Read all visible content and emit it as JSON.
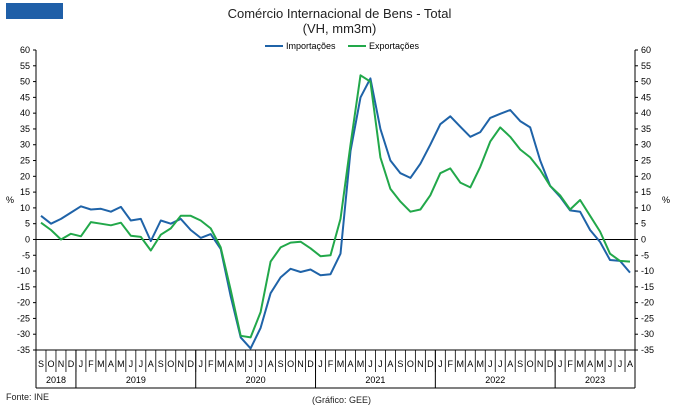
{
  "header": {
    "logo_colors": [
      "#1f5fa8",
      "#1f5fa8",
      "#1f5fa8"
    ]
  },
  "footer": {
    "source": "Fonte: INE",
    "credit": "(Gráfico: GEE)"
  },
  "chart_data": {
    "type": "line",
    "title": "Comércio Internacional de Bens - Total",
    "subtitle": "(VH, mm3m)",
    "ylabel": "%",
    "ylabel_right": "%",
    "ylim": [
      -35,
      60
    ],
    "yticks": [
      -35,
      -30,
      -25,
      -20,
      -15,
      -10,
      -5,
      0,
      5,
      10,
      15,
      20,
      25,
      30,
      35,
      40,
      45,
      50,
      55,
      60
    ],
    "categories": [
      "S",
      "O",
      "N",
      "D",
      "J",
      "F",
      "M",
      "A",
      "M",
      "J",
      "J",
      "A",
      "S",
      "O",
      "N",
      "D",
      "J",
      "F",
      "M",
      "A",
      "M",
      "J",
      "J",
      "A",
      "S",
      "O",
      "N",
      "D",
      "J",
      "F",
      "M",
      "A",
      "M",
      "J",
      "J",
      "A",
      "S",
      "O",
      "N",
      "D",
      "J",
      "F",
      "M",
      "A",
      "M",
      "J",
      "J",
      "A",
      "S",
      "O",
      "N",
      "D",
      "J",
      "F",
      "M",
      "A",
      "M",
      "J",
      "J",
      "A"
    ],
    "years": [
      {
        "label": "2018",
        "start": 0,
        "end": 3
      },
      {
        "label": "2019",
        "start": 4,
        "end": 15
      },
      {
        "label": "2020",
        "start": 16,
        "end": 27
      },
      {
        "label": "2021",
        "start": 28,
        "end": 39
      },
      {
        "label": "2022",
        "start": 40,
        "end": 51
      },
      {
        "label": "2023",
        "start": 52,
        "end": 59
      }
    ],
    "legend": [
      "Importações",
      "Exportações"
    ],
    "legend_position": "top-center",
    "series": [
      {
        "name": "Importações",
        "color": "#1f63a8",
        "values": [
          7.5,
          5,
          6.5,
          8.5,
          10.5,
          9.5,
          9.7,
          8.8,
          10.3,
          6,
          6.5,
          -0.5,
          6,
          5,
          6.5,
          3,
          0.5,
          1.7,
          -3,
          -18,
          -31,
          -34.5,
          -28,
          -17,
          -12,
          -9.3,
          -10.3,
          -9.5,
          -11.3,
          -11,
          -4.5,
          28,
          45,
          51,
          35,
          25,
          21,
          19.5,
          24,
          30,
          36.5,
          39,
          35.7,
          32.5,
          34,
          38.5,
          39.8,
          41,
          37.5,
          35.5,
          25,
          17,
          13.5,
          9.2,
          8.8,
          3,
          -0.8,
          -6.5,
          -6.8,
          -10.5
        ]
      },
      {
        "name": "Exportações",
        "color": "#22a84a",
        "values": [
          5.3,
          3,
          0,
          1.8,
          1,
          5.5,
          5,
          4.5,
          5.3,
          1.2,
          0.8,
          -3.5,
          1.5,
          3.5,
          7.5,
          7.5,
          6,
          3.5,
          -2.5,
          -16,
          -30.5,
          -31,
          -23,
          -7,
          -2.5,
          -1,
          -0.7,
          -2.8,
          -5.3,
          -5,
          6.5,
          30,
          52,
          50,
          26,
          16,
          12,
          8.8,
          9.5,
          14,
          21,
          22.5,
          18,
          16.5,
          23,
          31,
          35.5,
          32.5,
          28.5,
          26,
          22,
          17,
          14,
          9.5,
          12.5,
          7.5,
          2.5,
          -4.5,
          -6.8,
          -7
        ]
      }
    ]
  }
}
